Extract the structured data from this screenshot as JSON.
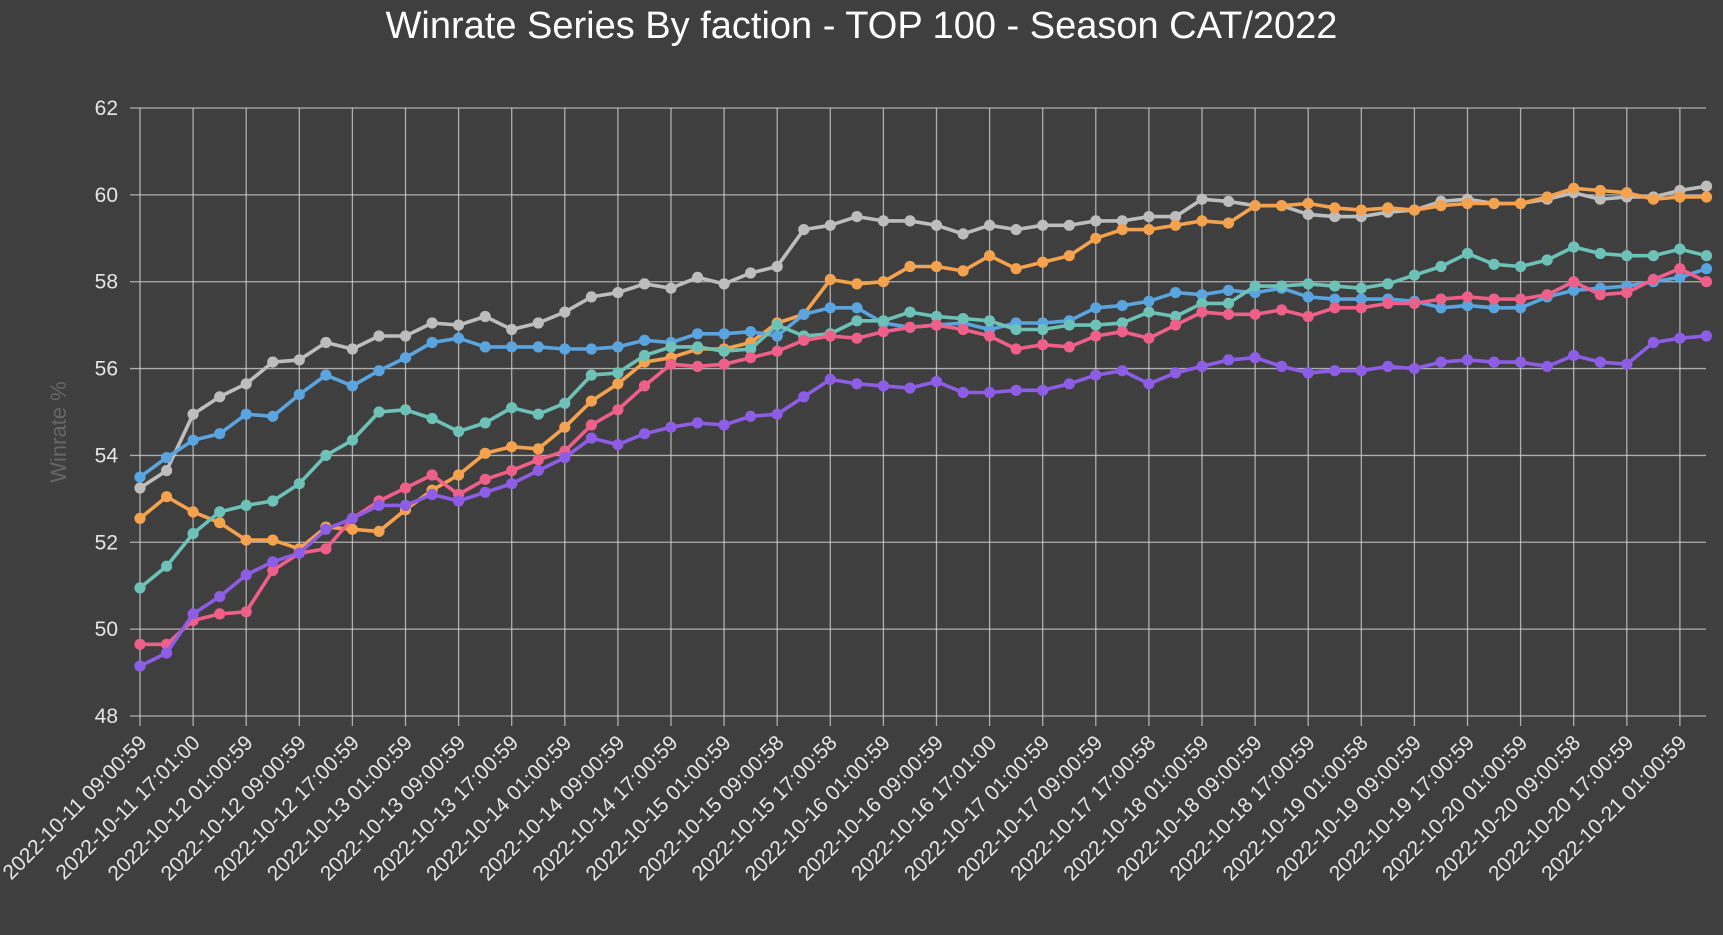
{
  "chart_data": {
    "type": "line",
    "title": "Winrate Series By faction - TOP 100 - Season CAT/2022",
    "xlabel": "",
    "ylabel": "Winrate %",
    "ylim": [
      48,
      62
    ],
    "yticks": [
      48,
      50,
      52,
      54,
      56,
      58,
      60,
      62
    ],
    "grid": true,
    "x_tick_labels": [
      "2022-10-11 09:00:59",
      "2022-10-11 17:01:00",
      "2022-10-12 01:00:59",
      "2022-10-12 09:00:59",
      "2022-10-12 17:00:59",
      "2022-10-13 01:00:59",
      "2022-10-13 09:00:59",
      "2022-10-13 17:00:59",
      "2022-10-14 01:00:59",
      "2022-10-14 09:00:59",
      "2022-10-14 17:00:59",
      "2022-10-15 01:00:59",
      "2022-10-15 09:00:58",
      "2022-10-15 17:00:58",
      "2022-10-16 01:00:59",
      "2022-10-16 09:00:59",
      "2022-10-16 17:01:00",
      "2022-10-17 01:00:59",
      "2022-10-17 09:00:59",
      "2022-10-17 17:00:58",
      "2022-10-18 01:00:59",
      "2022-10-18 09:00:59",
      "2022-10-18 17:00:59",
      "2022-10-19 01:00:58",
      "2022-10-19 09:00:59",
      "2022-10-19 17:00:59",
      "2022-10-20 01:00:59",
      "2022-10-20 09:00:58",
      "2022-10-20 17:00:59",
      "2022-10-21 01:00:59"
    ],
    "series": [
      {
        "color": "#bdbdbd",
        "values": [
          53.25,
          53.65,
          54.95,
          55.35,
          55.65,
          56.15,
          56.2,
          56.6,
          56.45,
          56.75,
          56.75,
          57.05,
          57.0,
          57.2,
          56.9,
          57.05,
          57.3,
          57.65,
          57.75,
          57.95,
          57.85,
          58.1,
          57.95,
          58.2,
          58.35,
          59.2,
          59.3,
          59.5,
          59.4,
          59.4,
          59.3,
          59.1,
          59.3,
          59.2,
          59.3,
          59.3,
          59.4,
          59.4,
          59.5,
          59.5,
          59.9,
          59.85,
          59.75,
          59.75,
          59.55,
          59.5,
          59.5,
          59.6,
          59.65,
          59.85,
          59.9,
          59.8,
          59.8,
          59.9,
          60.05,
          59.9,
          59.95,
          59.95,
          60.1,
          60.2
        ]
      },
      {
        "color": "#f4a24e",
        "values": [
          52.55,
          53.05,
          52.7,
          52.45,
          52.05,
          52.05,
          51.85,
          52.35,
          52.3,
          52.25,
          52.75,
          53.2,
          53.55,
          54.05,
          54.2,
          54.15,
          54.65,
          55.25,
          55.65,
          56.15,
          56.25,
          56.45,
          56.45,
          56.6,
          57.05,
          57.25,
          58.05,
          57.95,
          58.0,
          58.35,
          58.35,
          58.25,
          58.6,
          58.3,
          58.45,
          58.6,
          59.0,
          59.2,
          59.2,
          59.3,
          59.4,
          59.35,
          59.75,
          59.75,
          59.8,
          59.7,
          59.65,
          59.7,
          59.65,
          59.75,
          59.8,
          59.8,
          59.8,
          59.95,
          60.15,
          60.1,
          60.05,
          59.9,
          59.95,
          59.95
        ]
      },
      {
        "color": "#5aa4e0",
        "values": [
          53.5,
          53.95,
          54.35,
          54.5,
          54.95,
          54.9,
          55.4,
          55.85,
          55.6,
          55.95,
          56.25,
          56.6,
          56.7,
          56.5,
          56.5,
          56.5,
          56.45,
          56.45,
          56.5,
          56.65,
          56.6,
          56.8,
          56.8,
          56.85,
          56.75,
          57.25,
          57.4,
          57.4,
          57.05,
          56.95,
          57.0,
          57.05,
          56.9,
          57.05,
          57.05,
          57.1,
          57.4,
          57.45,
          57.55,
          57.75,
          57.7,
          57.8,
          57.75,
          57.85,
          57.65,
          57.6,
          57.6,
          57.6,
          57.55,
          57.4,
          57.45,
          57.4,
          57.4,
          57.65,
          57.8,
          57.85,
          57.9,
          58.0,
          58.1,
          58.3
        ]
      },
      {
        "color": "#6dc2b8",
        "values": [
          50.95,
          51.45,
          52.2,
          52.7,
          52.85,
          52.95,
          53.35,
          54.0,
          54.35,
          55.0,
          55.05,
          54.85,
          54.55,
          54.75,
          55.1,
          54.95,
          55.2,
          55.85,
          55.9,
          56.3,
          56.5,
          56.5,
          56.4,
          56.45,
          57.0,
          56.75,
          56.8,
          57.1,
          57.1,
          57.3,
          57.2,
          57.15,
          57.1,
          56.9,
          56.9,
          57.0,
          57.0,
          57.05,
          57.3,
          57.2,
          57.5,
          57.5,
          57.9,
          57.9,
          57.95,
          57.9,
          57.85,
          57.95,
          58.15,
          58.35,
          58.65,
          58.4,
          58.35,
          58.5,
          58.8,
          58.65,
          58.6,
          58.6,
          58.75,
          58.6
        ]
      },
      {
        "color": "#ee5f8a",
        "values": [
          49.65,
          49.65,
          50.2,
          50.35,
          50.4,
          51.35,
          51.75,
          51.85,
          52.55,
          52.95,
          53.25,
          53.55,
          53.1,
          53.45,
          53.65,
          53.9,
          54.1,
          54.7,
          55.05,
          55.6,
          56.1,
          56.05,
          56.1,
          56.25,
          56.4,
          56.65,
          56.75,
          56.7,
          56.85,
          56.95,
          57.0,
          56.9,
          56.75,
          56.45,
          56.55,
          56.5,
          56.75,
          56.85,
          56.7,
          57.0,
          57.3,
          57.25,
          57.25,
          57.35,
          57.2,
          57.4,
          57.4,
          57.5,
          57.5,
          57.6,
          57.65,
          57.6,
          57.6,
          57.7,
          58.0,
          57.7,
          57.75,
          58.05,
          58.3,
          58.0
        ]
      },
      {
        "color": "#8d5de6",
        "values": [
          49.15,
          49.45,
          50.35,
          50.75,
          51.25,
          51.55,
          51.75,
          52.3,
          52.55,
          52.85,
          52.85,
          53.1,
          52.95,
          53.15,
          53.35,
          53.65,
          53.95,
          54.4,
          54.25,
          54.5,
          54.65,
          54.75,
          54.7,
          54.9,
          54.95,
          55.35,
          55.75,
          55.65,
          55.6,
          55.55,
          55.7,
          55.45,
          55.45,
          55.5,
          55.5,
          55.65,
          55.85,
          55.95,
          55.65,
          55.9,
          56.05,
          56.2,
          56.25,
          56.05,
          55.9,
          55.95,
          55.95,
          56.05,
          56.0,
          56.15,
          56.2,
          56.15,
          56.15,
          56.05,
          56.3,
          56.15,
          56.1,
          56.6,
          56.7,
          56.75
        ]
      }
    ]
  }
}
